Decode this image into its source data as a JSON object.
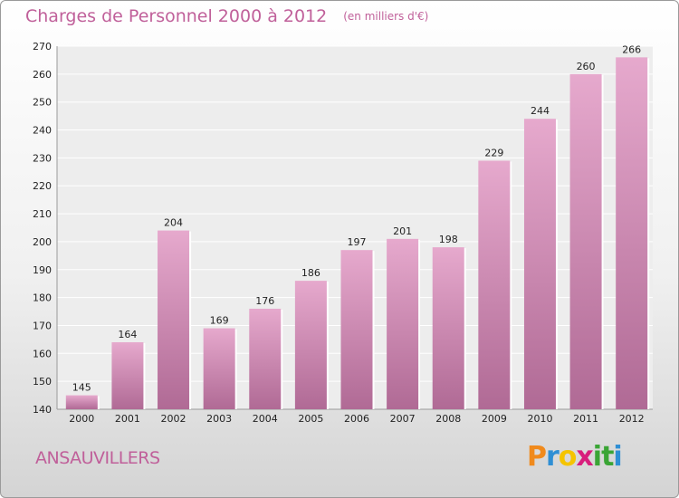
{
  "header": {
    "title": "Charges de Personnel 2000 à 2012",
    "subtitle": "(en milliers d'€)"
  },
  "footer": {
    "commune": "ANSAUVILLERS",
    "logo_letters": [
      "P",
      "r",
      "o",
      "x",
      "i",
      "t",
      "i"
    ]
  },
  "colors": {
    "accent": "#c0609a",
    "bar_top": "#e6a9cd",
    "bar_bottom": "#b06a95",
    "logo": [
      "#f08a1c",
      "#2f8fd4",
      "#f5c400",
      "#d81e7c",
      "#3aa535",
      "#3aa535",
      "#2f8fd4"
    ]
  },
  "chart_data": {
    "type": "bar",
    "title": "Charges de Personnel 2000 à 2012",
    "subtitle": "(en milliers d'€)",
    "categories": [
      "2000",
      "2001",
      "2002",
      "2003",
      "2004",
      "2005",
      "2006",
      "2007",
      "2008",
      "2009",
      "2010",
      "2011",
      "2012"
    ],
    "values": [
      145,
      164,
      204,
      169,
      176,
      186,
      197,
      201,
      198,
      229,
      244,
      260,
      266
    ],
    "ylim": [
      140,
      270
    ],
    "yticks": [
      140,
      150,
      160,
      170,
      180,
      190,
      200,
      210,
      220,
      230,
      240,
      250,
      260,
      270
    ],
    "grid": true,
    "legend": "none"
  }
}
